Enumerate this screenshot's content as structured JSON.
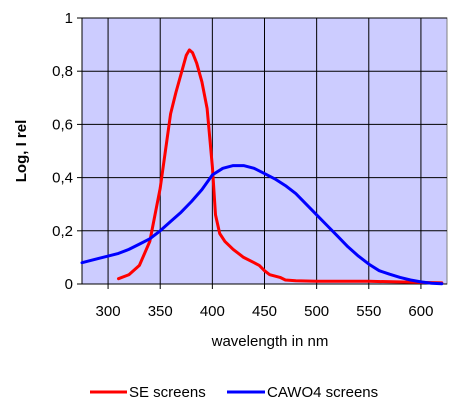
{
  "chart_data": {
    "type": "line",
    "title": "",
    "xlabel": "wavelength in nm",
    "ylabel": "Log, I rel",
    "xlim": [
      275,
      625
    ],
    "ylim": [
      0,
      1
    ],
    "x_ticks": [
      300,
      350,
      400,
      450,
      500,
      550,
      600
    ],
    "x_tick_labels": [
      "300",
      "350",
      "400",
      "450",
      "500",
      "550",
      "600"
    ],
    "y_ticks": [
      0,
      0.2,
      0.4,
      0.6,
      0.8,
      1
    ],
    "y_tick_labels": [
      "0",
      "0,2",
      "0,4",
      "0,6",
      "0,8",
      "1"
    ],
    "grid": true,
    "plot_background": "#ccccff",
    "legend_position": "bottom",
    "series": [
      {
        "name": "SE screens",
        "color": "#ff0000",
        "points": [
          [
            310,
            0.02
          ],
          [
            320,
            0.035
          ],
          [
            330,
            0.07
          ],
          [
            340,
            0.16
          ],
          [
            350,
            0.36
          ],
          [
            355,
            0.5
          ],
          [
            360,
            0.64
          ],
          [
            365,
            0.72
          ],
          [
            370,
            0.79
          ],
          [
            375,
            0.86
          ],
          [
            378,
            0.88
          ],
          [
            381,
            0.87
          ],
          [
            385,
            0.83
          ],
          [
            390,
            0.76
          ],
          [
            395,
            0.66
          ],
          [
            400,
            0.44
          ],
          [
            403,
            0.26
          ],
          [
            407,
            0.19
          ],
          [
            412,
            0.16
          ],
          [
            420,
            0.13
          ],
          [
            430,
            0.1
          ],
          [
            440,
            0.08
          ],
          [
            445,
            0.07
          ],
          [
            450,
            0.05
          ],
          [
            455,
            0.035
          ],
          [
            465,
            0.025
          ],
          [
            470,
            0.015
          ],
          [
            480,
            0.012
          ],
          [
            500,
            0.01
          ],
          [
            550,
            0.01
          ],
          [
            600,
            0.006
          ],
          [
            620,
            0.004
          ]
        ]
      },
      {
        "name": "CAWO4 screens",
        "color": "#0000ff",
        "points": [
          [
            275,
            0.08
          ],
          [
            290,
            0.095
          ],
          [
            300,
            0.105
          ],
          [
            310,
            0.115
          ],
          [
            320,
            0.13
          ],
          [
            330,
            0.15
          ],
          [
            340,
            0.17
          ],
          [
            350,
            0.2
          ],
          [
            360,
            0.235
          ],
          [
            370,
            0.27
          ],
          [
            380,
            0.31
          ],
          [
            390,
            0.355
          ],
          [
            400,
            0.41
          ],
          [
            410,
            0.435
          ],
          [
            420,
            0.445
          ],
          [
            430,
            0.445
          ],
          [
            440,
            0.435
          ],
          [
            450,
            0.415
          ],
          [
            460,
            0.395
          ],
          [
            470,
            0.37
          ],
          [
            480,
            0.34
          ],
          [
            490,
            0.3
          ],
          [
            500,
            0.26
          ],
          [
            510,
            0.22
          ],
          [
            520,
            0.18
          ],
          [
            530,
            0.14
          ],
          [
            540,
            0.105
          ],
          [
            550,
            0.075
          ],
          [
            560,
            0.05
          ],
          [
            570,
            0.037
          ],
          [
            580,
            0.025
          ],
          [
            590,
            0.015
          ],
          [
            600,
            0.008
          ],
          [
            610,
            0.003
          ],
          [
            620,
            0.001
          ]
        ]
      }
    ]
  }
}
